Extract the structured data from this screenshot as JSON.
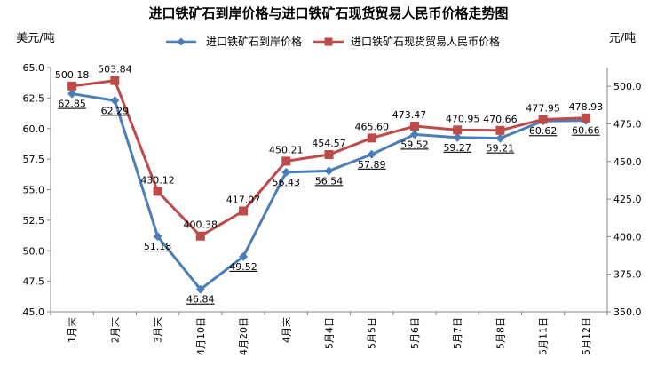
{
  "chart_data": {
    "type": "line",
    "title": "进口铁矿石到岸价格与进口铁矿石现货贸易人民币价格走势图",
    "left_unit": "美元/吨",
    "right_unit": "元/吨",
    "categories": [
      "1月末",
      "2月末",
      "3月末",
      "4月10日",
      "4月20日",
      "4月末",
      "5月4日",
      "5月5日",
      "5月6日",
      "5月7日",
      "5月8日",
      "5月11日",
      "5月12日"
    ],
    "left_axis": {
      "min": 45.0,
      "max": 65.0,
      "ticks": [
        "45.0",
        "47.5",
        "50.0",
        "52.5",
        "55.0",
        "57.5",
        "60.0",
        "62.5",
        "65.0"
      ]
    },
    "right_axis": {
      "min": 350.0,
      "max": 512.5,
      "ticks": [
        "350.0",
        "375.0",
        "400.0",
        "425.0",
        "450.0",
        "475.0",
        "500.0"
      ]
    },
    "legend_position": "top",
    "grid": false,
    "series": [
      {
        "name": "进口铁矿石到岸价格",
        "axis": "left",
        "color": "#4a7ebb",
        "marker": "diamond",
        "values": [
          62.85,
          62.29,
          51.18,
          46.84,
          49.52,
          56.43,
          56.54,
          57.89,
          59.52,
          59.27,
          59.21,
          60.62,
          60.66
        ],
        "labels": [
          "62.85",
          "62.29",
          "51.18",
          "46.84",
          "49.52",
          "56.43",
          "56.54",
          "57.89",
          "59.52",
          "59.27",
          "59.21",
          "60.62",
          "60.66"
        ]
      },
      {
        "name": "进口铁矿石现货贸易人民币价格",
        "axis": "right",
        "color": "#be4b48",
        "marker": "square",
        "values": [
          500.18,
          503.84,
          430.12,
          400.38,
          417.07,
          450.21,
          454.57,
          465.6,
          473.47,
          470.95,
          470.66,
          477.95,
          478.93
        ],
        "labels": [
          "500.18",
          "503.84",
          "430.12",
          "400.38",
          "417.07",
          "450.21",
          "454.57",
          "465.60",
          "473.47",
          "470.95",
          "470.66",
          "477.95",
          "478.93"
        ]
      }
    ]
  }
}
